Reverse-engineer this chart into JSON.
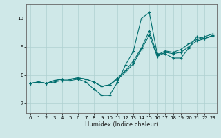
{
  "xlabel": "Humidex (Indice chaleur)",
  "background_color": "#cfe8e8",
  "grid_color": "#aed0d0",
  "line_color": "#006e6e",
  "xlim": [
    -0.5,
    23.5
  ],
  "ylim": [
    6.65,
    10.5
  ],
  "xticks": [
    0,
    1,
    2,
    3,
    4,
    5,
    6,
    7,
    8,
    9,
    10,
    11,
    12,
    13,
    14,
    15,
    16,
    17,
    18,
    19,
    20,
    21,
    22,
    23
  ],
  "yticks": [
    7,
    8,
    9,
    10
  ],
  "lines": [
    {
      "x": [
        0,
        1,
        2,
        3,
        4,
        5,
        6,
        7,
        8,
        9,
        10,
        11,
        12,
        13,
        14,
        15,
        16,
        17,
        18,
        19,
        20,
        21,
        22,
        23
      ],
      "y": [
        7.7,
        7.75,
        7.7,
        7.75,
        7.8,
        7.8,
        7.85,
        7.75,
        7.5,
        7.28,
        7.28,
        7.75,
        8.35,
        8.85,
        10.0,
        10.2,
        8.75,
        8.75,
        8.6,
        8.6,
        8.95,
        9.35,
        9.28,
        9.4
      ]
    },
    {
      "x": [
        0,
        1,
        2,
        3,
        4,
        5,
        6,
        7,
        8,
        9,
        10,
        11,
        12,
        13,
        14,
        15,
        16,
        17,
        18,
        19,
        20,
        21,
        22,
        23
      ],
      "y": [
        7.7,
        7.75,
        7.7,
        7.8,
        7.85,
        7.85,
        7.9,
        7.85,
        7.75,
        7.6,
        7.65,
        7.9,
        8.15,
        8.5,
        8.95,
        9.55,
        8.7,
        8.85,
        8.8,
        8.9,
        9.1,
        9.25,
        9.35,
        9.45
      ]
    },
    {
      "x": [
        0,
        1,
        2,
        3,
        4,
        5,
        6,
        7,
        8,
        9,
        10,
        11,
        12,
        13,
        14,
        15,
        16,
        17,
        18,
        19,
        20,
        21,
        22,
        23
      ],
      "y": [
        7.7,
        7.75,
        7.7,
        7.8,
        7.85,
        7.85,
        7.9,
        7.85,
        7.75,
        7.6,
        7.65,
        7.85,
        8.1,
        8.4,
        8.9,
        9.4,
        8.65,
        8.8,
        8.75,
        8.8,
        9.0,
        9.2,
        9.28,
        9.38
      ]
    }
  ]
}
